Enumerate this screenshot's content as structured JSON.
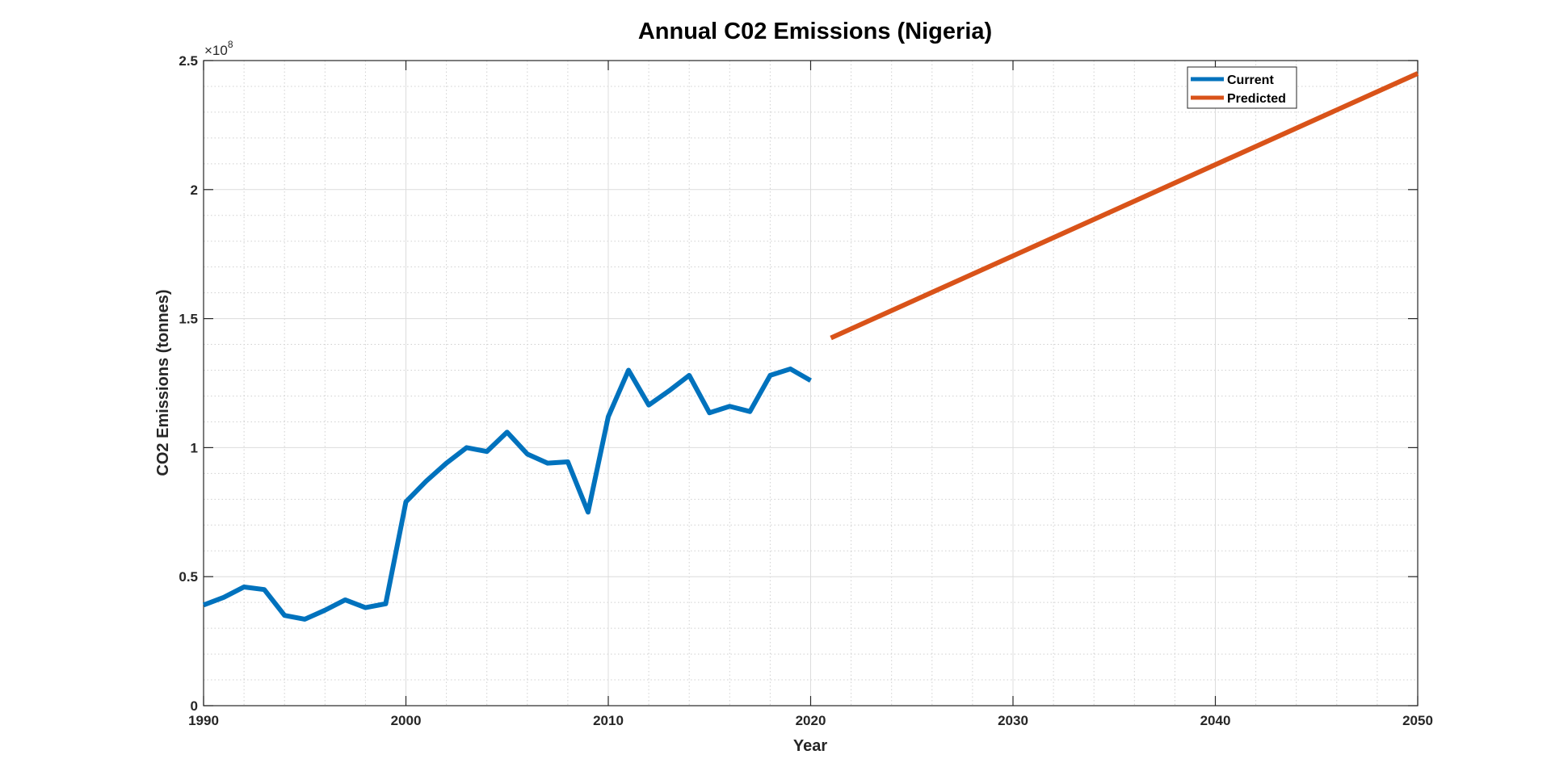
{
  "chart_data": {
    "type": "line",
    "title": "Annual C02 Emissions (Nigeria)",
    "xlabel": "Year",
    "ylabel": "CO2 Emissions (tonnes)",
    "exponent_label": "×10",
    "exponent": "8",
    "xlim": [
      1990,
      2050
    ],
    "ylim": [
      0,
      2.5
    ],
    "xticks": [
      "1990",
      "2000",
      "2010",
      "2020",
      "2030",
      "2040",
      "2050"
    ],
    "yticks": [
      "0",
      "0.5",
      "1",
      "1.5",
      "2",
      "2.5"
    ],
    "grid": true,
    "minor_grid": true,
    "legend_position": "top-right",
    "series": [
      {
        "name": "Current",
        "color": "#0072BD",
        "x": [
          1990,
          1991,
          1992,
          1993,
          1994,
          1995,
          1996,
          1997,
          1998,
          1999,
          2000,
          2001,
          2002,
          2003,
          2004,
          2005,
          2006,
          2007,
          2008,
          2009,
          2010,
          2011,
          2012,
          2013,
          2014,
          2015,
          2016,
          2017,
          2018,
          2019,
          2020
        ],
        "y": [
          0.39,
          0.42,
          0.46,
          0.45,
          0.35,
          0.335,
          0.37,
          0.41,
          0.38,
          0.395,
          0.79,
          0.87,
          0.94,
          1.0,
          0.985,
          1.06,
          0.975,
          0.94,
          0.945,
          0.75,
          1.12,
          1.3,
          1.165,
          1.22,
          1.28,
          1.135,
          1.16,
          1.14,
          1.28,
          1.305,
          1.26
        ]
      },
      {
        "name": "Predicted",
        "color": "#D95319",
        "x": [
          2021,
          2050
        ],
        "y": [
          1.425,
          2.45
        ]
      }
    ]
  }
}
